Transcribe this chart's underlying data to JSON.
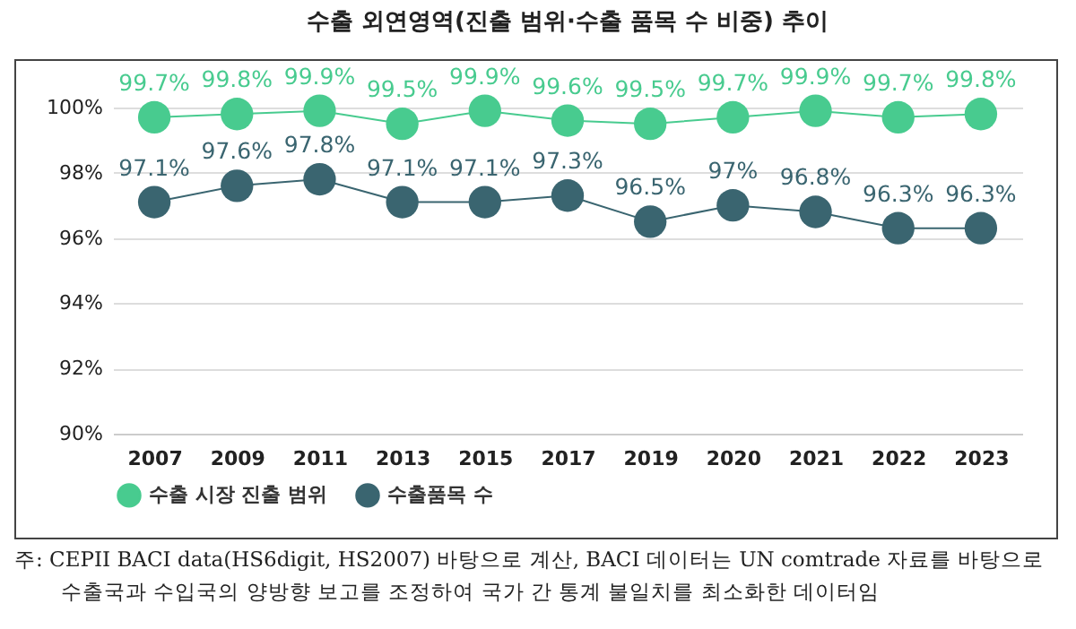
{
  "chart_data": {
    "type": "line",
    "title": "수출 외연영역(진출 범위·수출 품목 수 비중) 추이",
    "categories": [
      "2007",
      "2009",
      "2011",
      "2013",
      "2015",
      "2017",
      "2019",
      "2020",
      "2021",
      "2022",
      "2023"
    ],
    "series": [
      {
        "name": "수출 시장 진출 범위",
        "color": "#48cb8f",
        "values": [
          99.7,
          99.8,
          99.9,
          99.5,
          99.9,
          99.6,
          99.5,
          99.7,
          99.9,
          99.7,
          99.8
        ],
        "value_labels": [
          "99.7%",
          "99.8%",
          "99.9%",
          "99.5%",
          "99.9%",
          "99.6%",
          "99.5%",
          "99.7%",
          "99.9%",
          "99.7%",
          "99.8%"
        ]
      },
      {
        "name": "수출품목 수",
        "color": "#3a6570",
        "values": [
          97.1,
          97.6,
          97.8,
          97.1,
          97.1,
          97.3,
          96.5,
          97,
          96.8,
          96.3,
          96.3
        ],
        "value_labels": [
          "97.1%",
          "97.6%",
          "97.8%",
          "97.1%",
          "97.1%",
          "97.3%",
          "96.5%",
          "97%",
          "96.8%",
          "96.3%",
          "96.3%"
        ]
      }
    ],
    "ylim": [
      90,
      100
    ],
    "yticks": [
      {
        "value": 90,
        "label": "90%"
      },
      {
        "value": 92,
        "label": "92%"
      },
      {
        "value": 94,
        "label": "94%"
      },
      {
        "value": 96,
        "label": "96%"
      },
      {
        "value": 98,
        "label": "98%"
      },
      {
        "value": 100,
        "label": "100%"
      }
    ],
    "grid": "y",
    "legend": "bottom",
    "marker": "circle",
    "annotations": [
      "주: CEPII BACI data(HS6digit, HS2007) 바탕으로 계산, BACI 데이터는 UN comtrade 자료를 바탕으로 수출국과 수입국의 양방향 보고를 조정하여 국가 간 통계 불일치를 최소화한 데이터임"
    ]
  }
}
